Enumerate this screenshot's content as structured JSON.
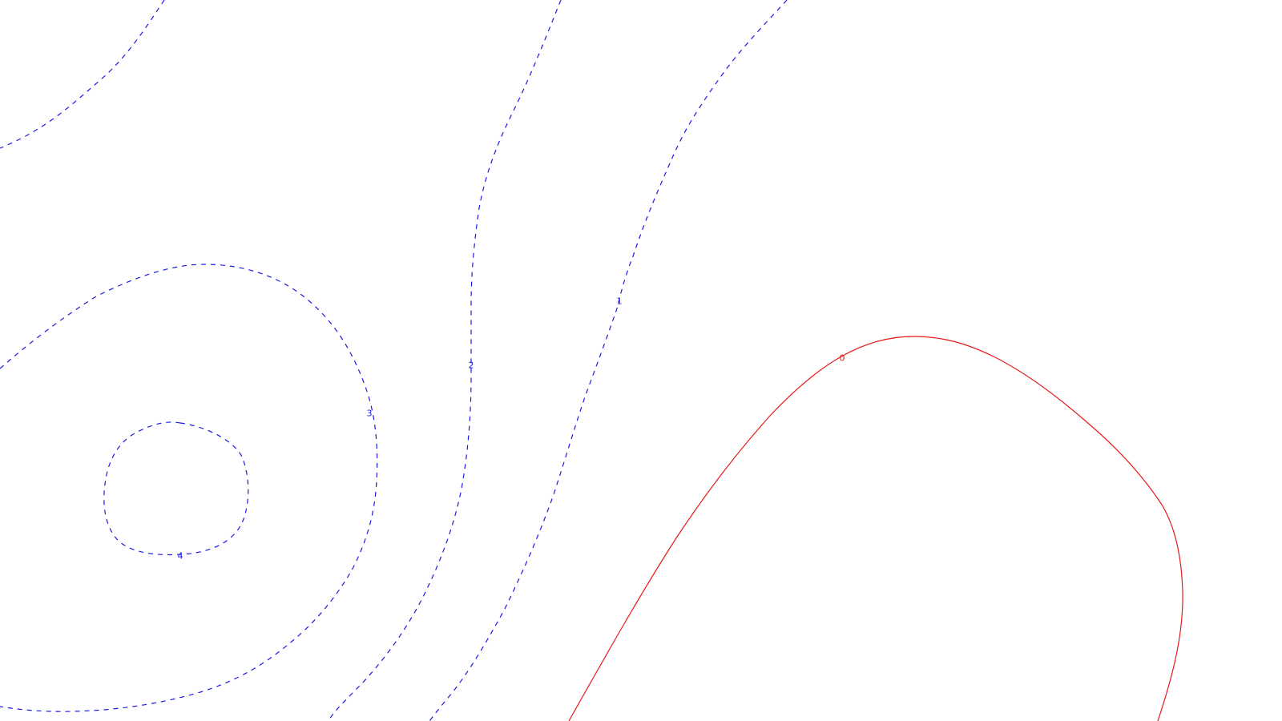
{
  "colors": {
    "negative": "#1a1ae6",
    "zero": "#e61a1a"
  },
  "contours": [
    {
      "level_label": "0",
      "style": "solid",
      "color": "zero"
    },
    {
      "level_label": "1",
      "style": "dashed",
      "color": "negative"
    },
    {
      "level_label": "2",
      "style": "dashed",
      "color": "negative"
    },
    {
      "level_label": "3",
      "style": "dashed",
      "color": "negative"
    },
    {
      "level_label": "4",
      "style": "dashed",
      "color": "negative"
    },
    {
      "level_label": "",
      "style": "dashed",
      "color": "negative"
    }
  ]
}
